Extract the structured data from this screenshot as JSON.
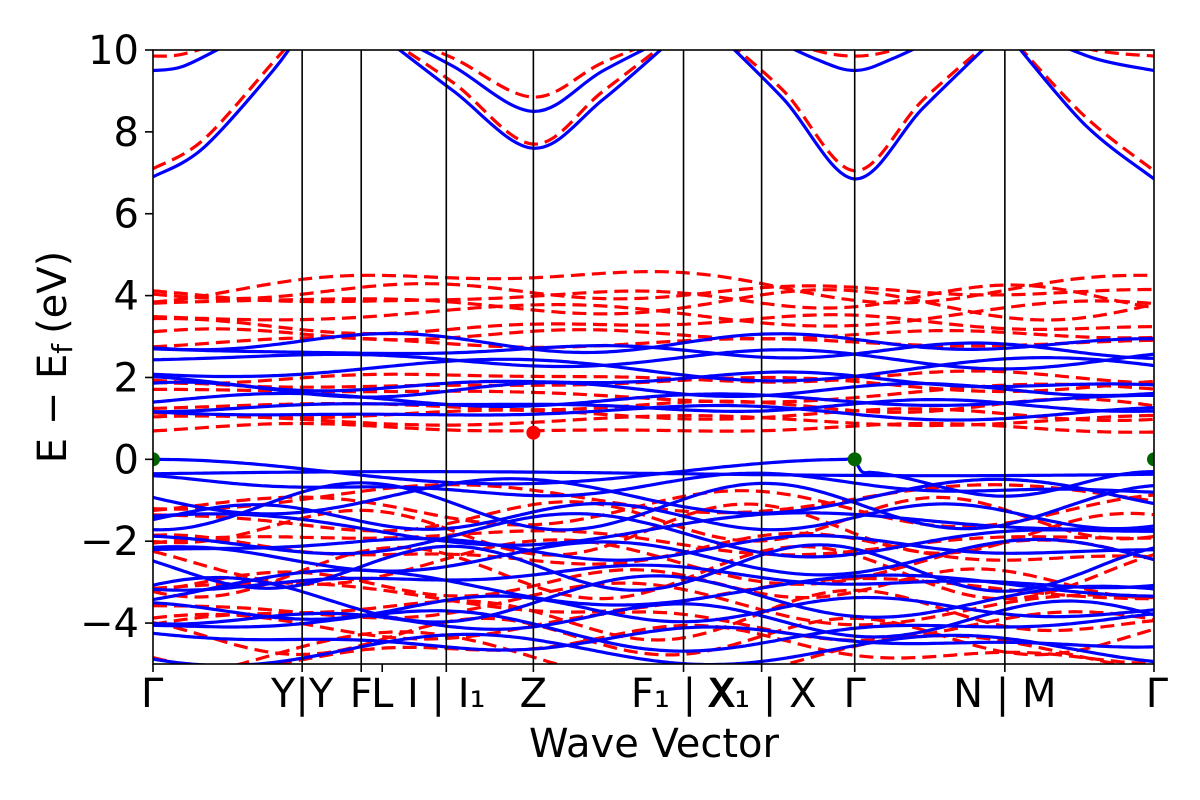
{
  "chart_data": {
    "type": "line",
    "xlabel": "Wave Vector",
    "ylabel": "E − E",
    "ylabel_sub": "f",
    "ylabel_unit": "(eV)",
    "ylim": [
      -5,
      10
    ],
    "yticks": [
      {
        "value": 10,
        "label": "10"
      },
      {
        "value": 8,
        "label": "8"
      },
      {
        "value": 6,
        "label": "6"
      },
      {
        "value": 4,
        "label": "4"
      },
      {
        "value": 2,
        "label": "2"
      },
      {
        "value": 0,
        "label": "0"
      },
      {
        "value": -2,
        "label": "−2"
      },
      {
        "value": -4,
        "label": "−4"
      }
    ],
    "xlim": [
      0,
      1
    ],
    "kpoints": [
      {
        "pos": 0.0,
        "label": "Γ"
      },
      {
        "pos": 0.149,
        "label": "Y|Y"
      },
      {
        "pos": 0.208,
        "label": "F"
      },
      {
        "pos": 0.229,
        "label": "L"
      },
      {
        "pos": 0.293,
        "label": "I | I₁"
      },
      {
        "pos": 0.38,
        "label": "Z"
      },
      {
        "pos": 0.53,
        "label": "F₁ | X"
      },
      {
        "pos": 0.608,
        "label": "X₁ | X"
      },
      {
        "pos": 0.701,
        "label": "Γ"
      },
      {
        "pos": 0.851,
        "label": "N | M"
      },
      {
        "pos": 1.0,
        "label": "Γ"
      }
    ],
    "vlines": [
      0.149,
      0.208,
      0.293,
      0.38,
      0.53,
      0.608,
      0.701,
      0.851
    ],
    "series": [
      {
        "style": "solid",
        "color": "#0000ff"
      },
      {
        "style": "dashed",
        "color": "#ff0000"
      }
    ],
    "colors": {
      "spin_up": "#0000ff",
      "spin_down": "#ff0000",
      "vbm": "#006400",
      "cbm": "#ff0000"
    },
    "vbm_points": [
      {
        "x": 0.0,
        "y": 0.0
      },
      {
        "x": 0.701,
        "y": 0.0
      },
      {
        "x": 1.0,
        "y": 0.0
      }
    ],
    "cbm_points": [
      {
        "x": 0.38,
        "y": 0.65
      }
    ],
    "conduction_blue": [
      {
        "x": [
          0,
          0.05,
          0.12,
          0.149
        ],
        "y": [
          6.9,
          7.6,
          9.5,
          10.5
        ]
      },
      {
        "x": [
          0,
          0.03,
          0.08,
          0.149
        ],
        "y": [
          9.5,
          9.6,
          10.2,
          11
        ]
      },
      {
        "x": [
          0.22,
          0.3,
          0.38,
          0.45,
          0.53
        ],
        "y": [
          10.5,
          9.0,
          7.6,
          8.8,
          10.5
        ]
      },
      {
        "x": [
          0.23,
          0.3,
          0.38,
          0.45,
          0.53
        ],
        "y": [
          10.5,
          9.6,
          8.5,
          9.5,
          10.5
        ]
      },
      {
        "x": [
          0.56,
          0.63,
          0.701,
          0.77,
          0.85
        ],
        "y": [
          10.5,
          8.8,
          6.85,
          8.6,
          10.5
        ]
      },
      {
        "x": [
          0.6,
          0.66,
          0.701,
          0.74,
          0.8
        ],
        "y": [
          10.5,
          9.8,
          9.5,
          9.8,
          10.5
        ]
      },
      {
        "x": [
          0.85,
          0.93,
          1.0
        ],
        "y": [
          10.5,
          8.2,
          6.85
        ]
      },
      {
        "x": [
          0.87,
          0.94,
          1.0
        ],
        "y": [
          10.5,
          9.8,
          9.5
        ]
      }
    ],
    "conduction_red": [
      {
        "x": [
          0,
          0.05,
          0.12,
          0.149
        ],
        "y": [
          7.1,
          7.8,
          9.7,
          10.5
        ]
      },
      {
        "x": [
          0,
          0.03,
          0.08,
          0.149
        ],
        "y": [
          9.85,
          9.9,
          10.3,
          11
        ]
      },
      {
        "x": [
          0.22,
          0.3,
          0.38,
          0.45,
          0.53
        ],
        "y": [
          10.5,
          9.2,
          7.7,
          9.0,
          10.5
        ]
      },
      {
        "x": [
          0.23,
          0.3,
          0.38,
          0.45,
          0.53
        ],
        "y": [
          10.5,
          9.8,
          8.85,
          9.7,
          10.5
        ]
      },
      {
        "x": [
          0.56,
          0.63,
          0.701,
          0.77,
          0.85
        ],
        "y": [
          10.5,
          9.0,
          7.05,
          8.8,
          10.5
        ]
      },
      {
        "x": [
          0.6,
          0.66,
          0.701,
          0.74,
          0.8
        ],
        "y": [
          10.5,
          10.0,
          9.85,
          10.0,
          10.5
        ]
      },
      {
        "x": [
          0.85,
          0.93,
          1.0
        ],
        "y": [
          10.5,
          8.4,
          7.05
        ]
      },
      {
        "x": [
          0.87,
          0.94,
          1.0
        ],
        "y": [
          10.5,
          10.0,
          9.85
        ]
      }
    ]
  }
}
